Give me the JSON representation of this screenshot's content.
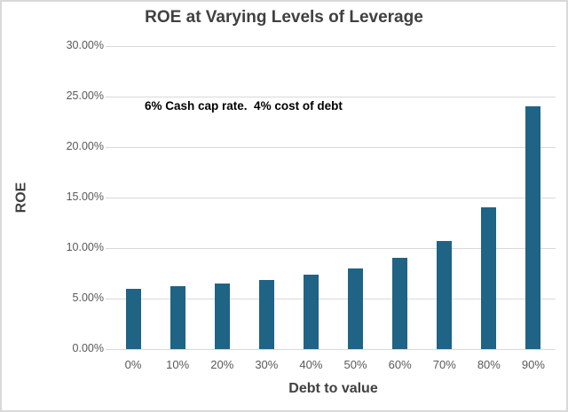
{
  "chart_data": {
    "type": "bar",
    "title": "ROE at Varying Levels of Leverage",
    "annotation": "6% Cash cap rate.  4% cost of debt",
    "xlabel": "Debt to value",
    "ylabel": "ROE",
    "categories": [
      "0%",
      "10%",
      "20%",
      "30%",
      "40%",
      "50%",
      "60%",
      "70%",
      "80%",
      "90%"
    ],
    "values": [
      6.0,
      6.22,
      6.5,
      6.86,
      7.33,
      8.0,
      9.0,
      10.67,
      14.0,
      24.0
    ],
    "ylim": [
      0,
      30
    ],
    "yticks": [
      0,
      5,
      10,
      15,
      20,
      25,
      30
    ],
    "ytick_labels": [
      "0.00%",
      "5.00%",
      "10.00%",
      "15.00%",
      "20.00%",
      "25.00%",
      "30.00%"
    ],
    "grid": true,
    "legend": false,
    "colors": {
      "bar": "#1F6385",
      "gridline": "#D9D9D9",
      "tick_label": "#595959",
      "title": "#404040",
      "annotation": "#000000",
      "border": "#D9D9D9"
    }
  }
}
